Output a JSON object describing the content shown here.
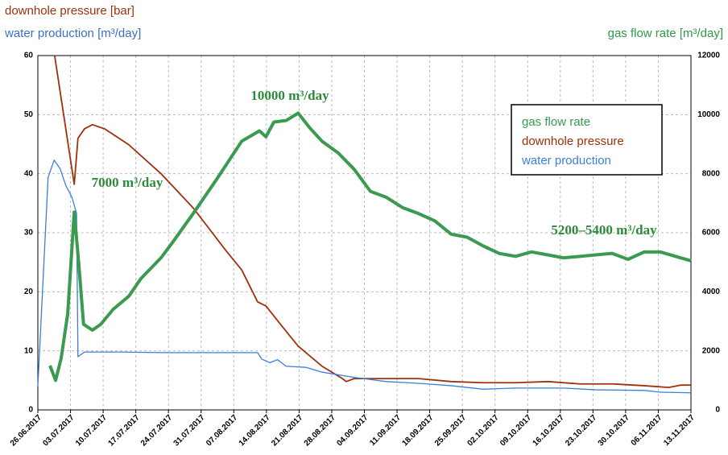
{
  "chart_data": {
    "type": "line",
    "y_label": "downhole pressure [bar]",
    "y_label_2": "water production [m³/day]",
    "y2_label": "gas flow rate [m³/day]",
    "annotations": [
      "10000 m³/day",
      "7000 m³/day",
      "5200–5400 m³/day"
    ],
    "xlim": [
      0,
      140
    ],
    "xticks": [
      {
        "value": 0,
        "label": "26.06.2017"
      },
      {
        "value": 7,
        "label": "03.07.2017"
      },
      {
        "value": 14,
        "label": "10.07.2017"
      },
      {
        "value": 21,
        "label": "17.07.2017"
      },
      {
        "value": 28,
        "label": "24.07.2017"
      },
      {
        "value": 35,
        "label": "31.07.2017"
      },
      {
        "value": 42,
        "label": "07.08.2017"
      },
      {
        "value": 49,
        "label": "14.08.2017"
      },
      {
        "value": 56,
        "label": "21.08.2017"
      },
      {
        "value": 63,
        "label": "28.08.2017"
      },
      {
        "value": 70,
        "label": "04.09.2017"
      },
      {
        "value": 77,
        "label": "11.09.2017"
      },
      {
        "value": 84,
        "label": "18.09.2017"
      },
      {
        "value": 91,
        "label": "25.09.2017"
      },
      {
        "value": 98,
        "label": "02.10.2017"
      },
      {
        "value": 105,
        "label": "09.10.2017"
      },
      {
        "value": 112,
        "label": "16.10.2017"
      },
      {
        "value": 119,
        "label": "23.10.2017"
      },
      {
        "value": 126,
        "label": "30.10.2017"
      },
      {
        "value": 133,
        "label": "06.11.2017"
      },
      {
        "value": 140,
        "label": "13.11.2017"
      }
    ],
    "ylim": [
      0,
      60
    ],
    "yticks": [
      0,
      10,
      20,
      30,
      40,
      50,
      60
    ],
    "y2lim": [
      0,
      12000
    ],
    "y2ticks": [
      0,
      2000,
      4000,
      6000,
      8000,
      10000,
      12000
    ],
    "grid": true,
    "series": [
      {
        "name": "gas flow rate",
        "color": "#3a9a50",
        "axis": "y2",
        "x": [
          2.6,
          3.8,
          5.0,
          6.4,
          7.8,
          8.8,
          9.8,
          11.7,
          13.5,
          16.1,
          19.5,
          22.1,
          26.4,
          29.0,
          33.3,
          38.5,
          43.7,
          47.5,
          48.9,
          50.6,
          53.2,
          55.8,
          58.3,
          60.9,
          64.4,
          67.8,
          71.3,
          74.7,
          78.2,
          81.6,
          85.1,
          88.6,
          92.0,
          95.5,
          98.9,
          102.4,
          105.8,
          109.3,
          112.7,
          116.2,
          119.6,
          123.1,
          126.5,
          130.0,
          133.4,
          137.8,
          140
        ],
        "values": [
          1500,
          1000,
          1750,
          3250,
          6700,
          4900,
          2900,
          2700,
          2900,
          3400,
          3850,
          4450,
          5150,
          5700,
          6650,
          7850,
          9100,
          9450,
          9250,
          9750,
          9800,
          10050,
          9550,
          9100,
          8700,
          8150,
          7400,
          7200,
          6850,
          6650,
          6400,
          5950,
          5850,
          5550,
          5300,
          5200,
          5350,
          5250,
          5150,
          5200,
          5250,
          5300,
          5100,
          5350,
          5350,
          5150,
          5050
        ]
      },
      {
        "name": "downhole pressure",
        "color": "#a0300a",
        "x": [
          3.6,
          7.8,
          8.6,
          10.0,
          11.7,
          14.3,
          19.5,
          26.4,
          33.3,
          40.2,
          43.7,
          47.1,
          48.9,
          52.3,
          55.8,
          60.9,
          65.3,
          66.1,
          67.8,
          74.7,
          81.6,
          88.6,
          95.5,
          102.4,
          109.3,
          116.2,
          123.1,
          130,
          135.2,
          137.8,
          140
        ],
        "values": [
          60,
          38.2,
          46,
          47.6,
          48.3,
          47.6,
          44.9,
          40,
          34.2,
          27.1,
          23.7,
          18.3,
          17.6,
          14.2,
          10.8,
          7.4,
          5.3,
          4.8,
          5.3,
          5.3,
          5.3,
          4.8,
          4.6,
          4.6,
          4.8,
          4.4,
          4.4,
          4.1,
          3.8,
          4.2,
          4.2
        ]
      },
      {
        "name": "water production",
        "color": "#3a7fd8",
        "x": [
          0,
          2.2,
          3.5,
          4.8,
          6.0,
          7.3,
          8.3,
          8.6,
          10.0,
          17.8,
          26.4,
          47.1,
          48.0,
          49.7,
          51.4,
          53.2,
          57.5,
          60.9,
          67.8,
          74.7,
          81.6,
          88.6,
          95.5,
          102.4,
          112.7,
          119.6,
          130,
          133.4,
          140
        ],
        "values": [
          4,
          39.4,
          42.3,
          40.8,
          38,
          36,
          33.3,
          9,
          9.8,
          9.8,
          9.7,
          9.7,
          8.6,
          8,
          8.5,
          7.4,
          7.2,
          6.4,
          5.5,
          4.8,
          4.5,
          4.1,
          3.5,
          3.7,
          3.7,
          3.4,
          3.3,
          3,
          2.9
        ]
      }
    ]
  }
}
